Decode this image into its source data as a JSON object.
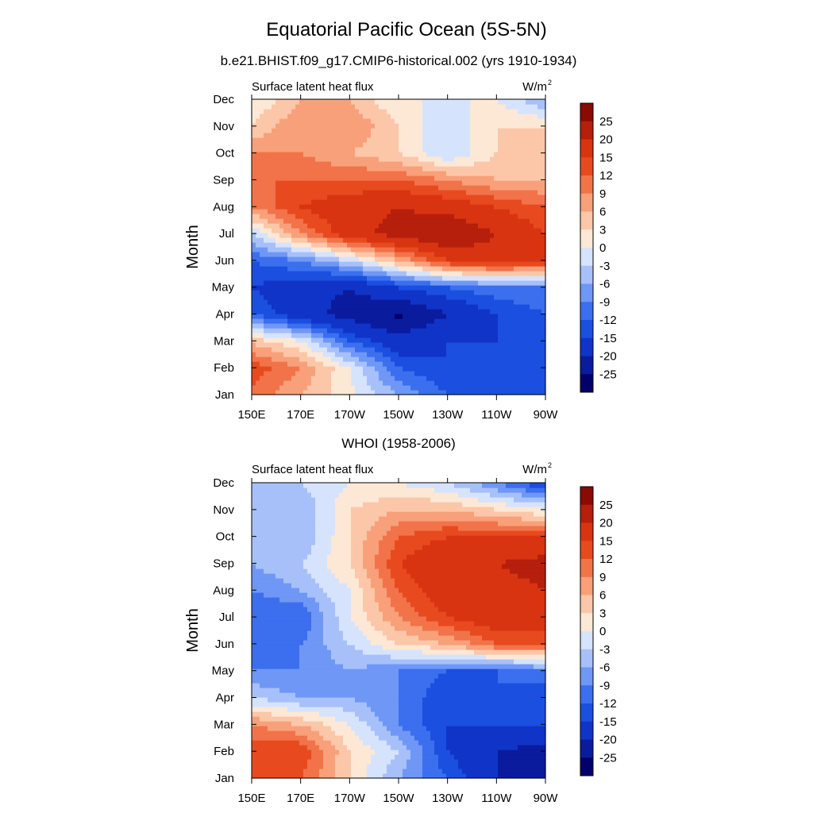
{
  "figure": {
    "title": "Equatorial Pacific Ocean (5S-5N)",
    "colors": [
      "#03006b",
      "#0a1b9e",
      "#1034c8",
      "#1a4fe0",
      "#3b6fee",
      "#6f97f6",
      "#a7c0fa",
      "#d5e3fd",
      "#fde8d6",
      "#fbc7a8",
      "#f8a07a",
      "#f27349",
      "#e84a1f",
      "#d93411",
      "#b51f0c",
      "#8c0a05"
    ],
    "colorbar_labels": [
      "25",
      "20",
      "15",
      "12",
      "9",
      "6",
      "3",
      "0",
      "-3",
      "-6",
      "-9",
      "-12",
      "-15",
      "-20",
      "-25"
    ]
  },
  "chart_data": [
    {
      "type": "heatmap",
      "title": "b.e21.BHIST.f09_g17.CMIP6-historical.002 (yrs 1910-1934)",
      "left_label": "Surface latent heat flux",
      "right_label": "W/m",
      "right_label_sup": "2",
      "ylabel": "Month",
      "x": [
        "150E",
        "170E",
        "170W",
        "150W",
        "130W",
        "110W",
        "90W"
      ],
      "y": [
        "Jan",
        "Feb",
        "Mar",
        "Apr",
        "May",
        "Jun",
        "Jul",
        "Aug",
        "Sep",
        "Oct",
        "Nov",
        "Dec"
      ],
      "levels": [
        -25,
        -20,
        -15,
        -12,
        -9,
        -6,
        -3,
        0,
        3,
        6,
        9,
        12,
        15,
        20,
        25
      ],
      "values": [
        [
          11,
          6,
          1,
          -6,
          -12,
          -15,
          -15
        ],
        [
          14,
          9,
          0,
          -12,
          -15,
          -15,
          -15
        ],
        [
          5,
          0,
          -12,
          -18,
          -15,
          -15,
          -12
        ],
        [
          -12,
          -18,
          -22,
          -26,
          -20,
          -15,
          -12
        ],
        [
          -15,
          -18,
          -20,
          -15,
          -12,
          -10,
          -9
        ],
        [
          -12,
          -9,
          -3,
          6,
          15,
          18,
          15
        ],
        [
          -3,
          9,
          18,
          22,
          25,
          20,
          15
        ],
        [
          9,
          15,
          18,
          20,
          18,
          15,
          12
        ],
        [
          12,
          12,
          12,
          12,
          9,
          6,
          6
        ],
        [
          9,
          9,
          6,
          3,
          -3,
          3,
          6
        ],
        [
          3,
          9,
          9,
          3,
          -3,
          3,
          3
        ],
        [
          0,
          6,
          6,
          0,
          0,
          0,
          -6
        ]
      ]
    },
    {
      "type": "heatmap",
      "title": "WHOI (1958-2006)",
      "left_label": "Surface latent heat flux",
      "right_label": "W/m",
      "right_label_sup": "2",
      "ylabel": "Month",
      "x": [
        "150E",
        "170E",
        "170W",
        "150W",
        "130W",
        "110W",
        "90W"
      ],
      "y": [
        "Jan",
        "Feb",
        "Mar",
        "Apr",
        "May",
        "Jun",
        "Jul",
        "Aug",
        "Sep",
        "Oct",
        "Nov",
        "Dec"
      ],
      "levels": [
        -25,
        -20,
        -15,
        -12,
        -9,
        -6,
        -3,
        0,
        3,
        6,
        9,
        12,
        15,
        20,
        25
      ],
      "values": [
        [
          12,
          12,
          3,
          -6,
          -12,
          -20,
          -22
        ],
        [
          15,
          15,
          3,
          -3,
          -15,
          -20,
          -22
        ],
        [
          9,
          6,
          0,
          -9,
          -15,
          -15,
          -15
        ],
        [
          -3,
          -6,
          -6,
          -9,
          -15,
          -12,
          -15
        ],
        [
          -9,
          -9,
          -6,
          -9,
          -12,
          -12,
          -9
        ],
        [
          -12,
          -9,
          -3,
          3,
          6,
          12,
          12
        ],
        [
          -12,
          -12,
          0,
          9,
          15,
          18,
          18
        ],
        [
          -9,
          -6,
          0,
          12,
          18,
          18,
          20
        ],
        [
          -6,
          -3,
          3,
          15,
          20,
          20,
          22
        ],
        [
          -3,
          -6,
          3,
          12,
          15,
          15,
          15
        ],
        [
          -3,
          -6,
          3,
          6,
          6,
          3,
          0
        ],
        [
          -6,
          -3,
          0,
          0,
          -3,
          -9,
          -15
        ]
      ]
    }
  ]
}
